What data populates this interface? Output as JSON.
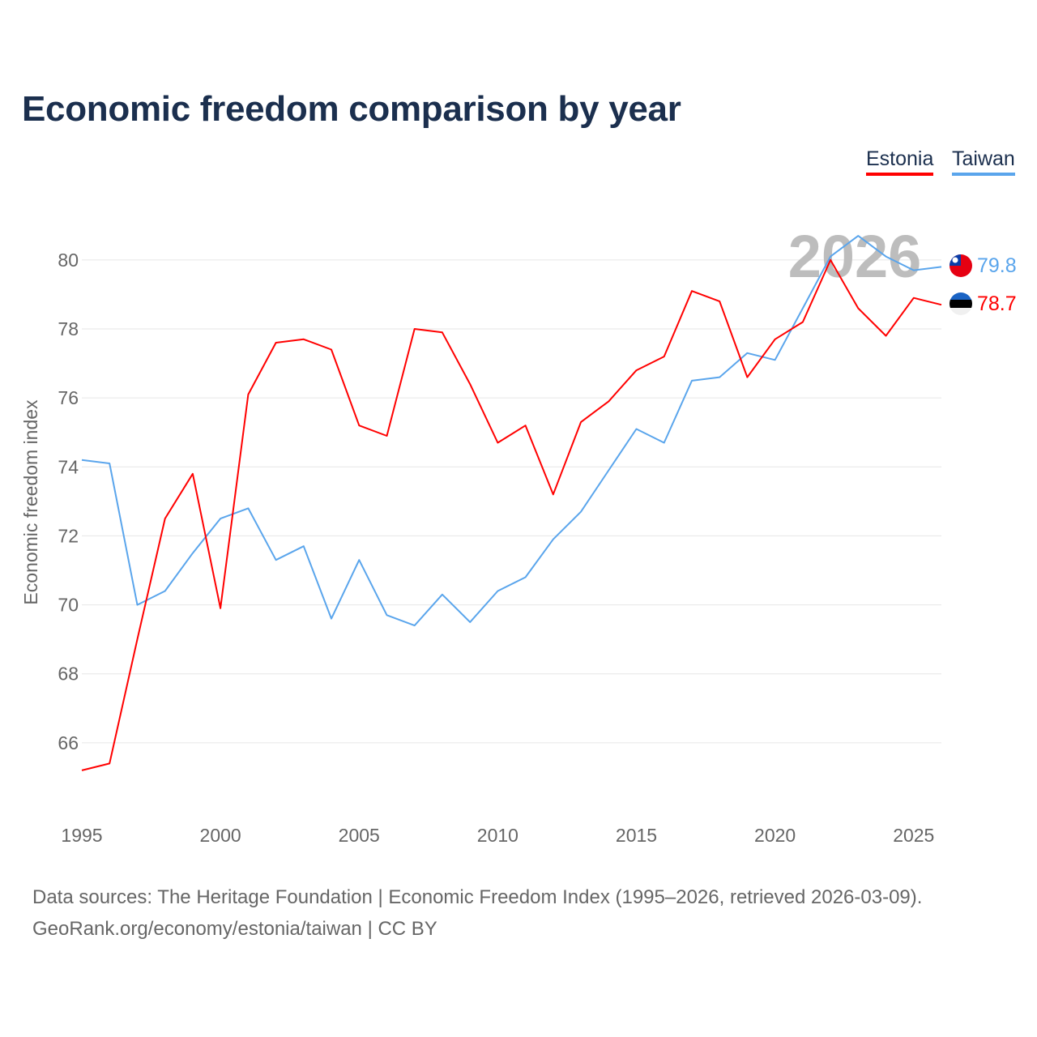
{
  "title": "Economic freedom comparison by year",
  "legend": [
    {
      "label": "Estonia",
      "color": "#ff0000"
    },
    {
      "label": "Taiwan",
      "color": "#5aa5ec"
    }
  ],
  "year_label": "2026",
  "end_labels": {
    "estonia": "78.7",
    "taiwan": "79.8"
  },
  "footer": {
    "line1": "Data sources: The Heritage Foundation | Economic Freedom Index (1995–2026, retrieved 2026-03-09).",
    "line2": "GeoRank.org/economy/estonia/taiwan | CC BY"
  },
  "chart_data": {
    "type": "line",
    "title": "Economic freedom comparison by year",
    "xlabel": "",
    "ylabel": "Economic freedom index",
    "x": [
      1995,
      1996,
      1997,
      1998,
      1999,
      2000,
      2001,
      2002,
      2003,
      2004,
      2005,
      2006,
      2007,
      2008,
      2009,
      2010,
      2011,
      2012,
      2013,
      2014,
      2015,
      2016,
      2017,
      2018,
      2019,
      2020,
      2021,
      2022,
      2023,
      2024,
      2025,
      2026
    ],
    "xticks": [
      "1995",
      "2000",
      "2005",
      "2010",
      "2015",
      "2020",
      "2025"
    ],
    "yticks": [
      "66",
      "68",
      "70",
      "72",
      "74",
      "76",
      "78",
      "80"
    ],
    "xlim": [
      1995,
      2026
    ],
    "ylim": [
      64,
      81.5
    ],
    "grid": true,
    "legend_position": "top-right",
    "series": [
      {
        "name": "Estonia",
        "color": "#ff0000",
        "values": [
          65.2,
          65.4,
          69.0,
          72.5,
          73.8,
          69.9,
          76.1,
          77.6,
          77.7,
          77.4,
          75.2,
          74.9,
          78.0,
          77.9,
          76.4,
          74.7,
          75.2,
          73.2,
          75.3,
          75.9,
          76.8,
          77.2,
          79.1,
          78.8,
          76.6,
          77.7,
          78.2,
          80.0,
          78.6,
          77.8,
          78.9,
          78.7
        ]
      },
      {
        "name": "Taiwan",
        "color": "#5aa5ec",
        "values": [
          74.2,
          74.1,
          70.0,
          70.4,
          71.5,
          72.5,
          72.8,
          71.3,
          71.7,
          69.6,
          71.3,
          69.7,
          69.4,
          70.3,
          69.5,
          70.4,
          70.8,
          71.9,
          72.7,
          73.9,
          75.1,
          74.7,
          76.5,
          76.6,
          77.3,
          77.1,
          78.6,
          80.1,
          80.7,
          80.1,
          79.7,
          79.8
        ]
      }
    ]
  }
}
